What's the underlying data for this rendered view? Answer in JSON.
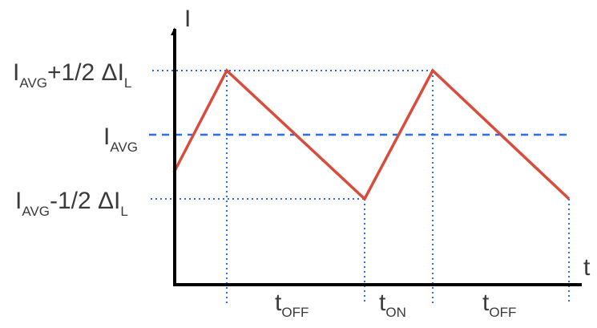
{
  "axes": {
    "y_label": "I",
    "x_label": "t"
  },
  "levels": {
    "top": {
      "main": "I",
      "sub": "AVG",
      "mid": "+1/2 ΔI",
      "end": "L"
    },
    "avg": {
      "main": "I",
      "sub": "AVG"
    },
    "bottom": {
      "main": "I",
      "sub": "AVG",
      "mid": "-1/2 ΔI",
      "end": "L"
    }
  },
  "intervals": [
    {
      "main": "t",
      "sub": "OFF"
    },
    {
      "main": "t",
      "sub": "ON"
    },
    {
      "main": "t",
      "sub": "OFF"
    }
  ],
  "colors": {
    "waveform": "#d94b3a",
    "guides": "#2f6fe6",
    "axis": "#000000"
  }
}
